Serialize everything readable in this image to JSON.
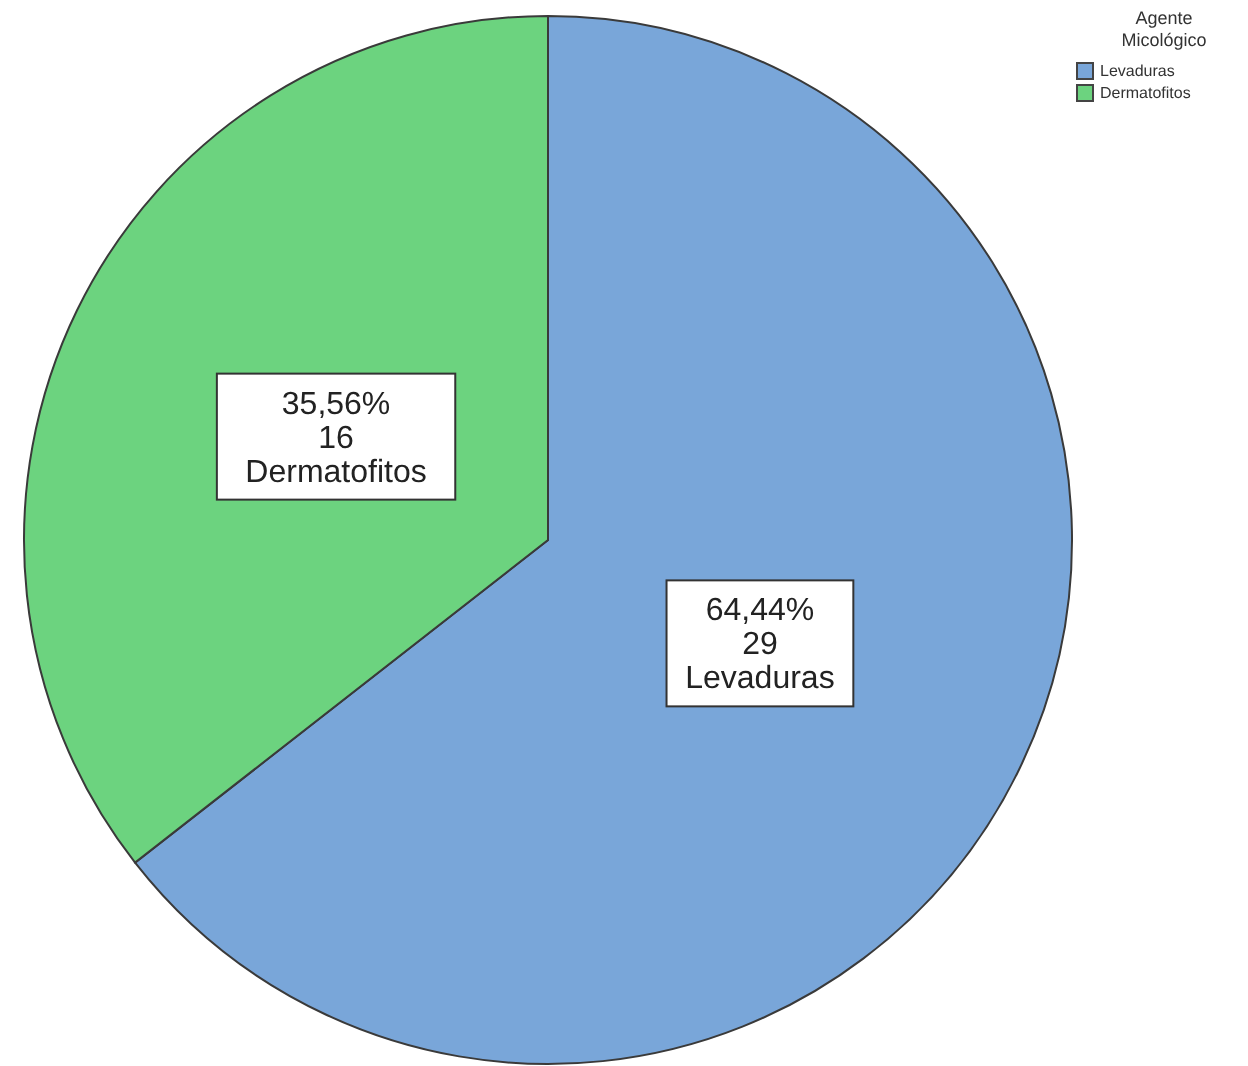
{
  "chart_data": {
    "type": "pie",
    "legend_title": "Agente Micológico",
    "categories": [
      "Levaduras",
      "Dermatofitos"
    ],
    "values": [
      29,
      16
    ],
    "colors": [
      "#79a6d9",
      "#6cd37f"
    ],
    "value_labels": [
      "64,44%\n29",
      "35,56%\n16"
    ],
    "legend": "top right"
  }
}
